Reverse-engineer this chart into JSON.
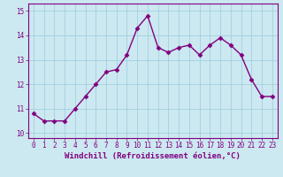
{
  "x": [
    0,
    1,
    2,
    3,
    4,
    5,
    6,
    7,
    8,
    9,
    10,
    11,
    12,
    13,
    14,
    15,
    16,
    17,
    18,
    19,
    20,
    21,
    22,
    23
  ],
  "y": [
    10.8,
    10.5,
    10.5,
    10.5,
    11.0,
    11.5,
    12.0,
    12.5,
    12.6,
    13.2,
    14.3,
    14.8,
    13.5,
    13.3,
    13.5,
    13.6,
    13.2,
    13.6,
    13.9,
    13.6,
    13.2,
    12.2,
    11.5,
    11.5
  ],
  "line_color": "#800080",
  "marker": "D",
  "marker_size": 2.5,
  "bg_color": "#cce8f0",
  "grid_color": "#99cce0",
  "xlabel": "Windchill (Refroidissement éolien,°C)",
  "ylabel": "",
  "xlim": [
    -0.5,
    23.5
  ],
  "ylim": [
    9.8,
    15.3
  ],
  "yticks": [
    10,
    11,
    12,
    13,
    14,
    15
  ],
  "xticks": [
    0,
    1,
    2,
    3,
    4,
    5,
    6,
    7,
    8,
    9,
    10,
    11,
    12,
    13,
    14,
    15,
    16,
    17,
    18,
    19,
    20,
    21,
    22,
    23
  ],
  "tick_label_color": "#800080",
  "tick_label_size": 5.5,
  "xlabel_size": 6.5,
  "line_width": 1.0,
  "spine_color": "#800080"
}
